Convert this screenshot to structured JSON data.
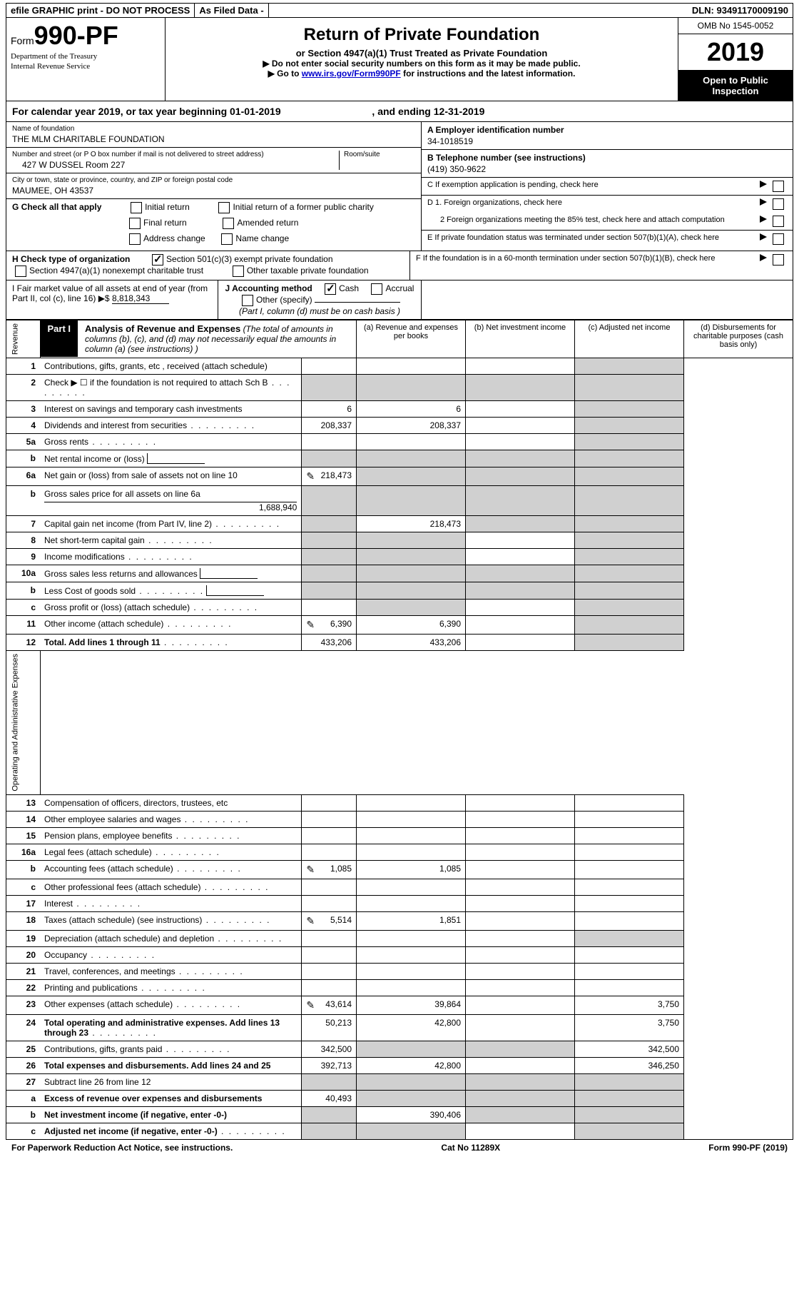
{
  "topbar": {
    "efile": "efile GRAPHIC print - DO NOT PROCESS",
    "asfiled": "As Filed Data -",
    "dln": "DLN: 93491170009190"
  },
  "header": {
    "form_prefix": "Form",
    "form_number": "990-PF",
    "dept1": "Department of the Treasury",
    "dept2": "Internal Revenue Service",
    "title": "Return of Private Foundation",
    "subtitle": "or Section 4947(a)(1) Trust Treated as Private Foundation",
    "note1": "▶ Do not enter social security numbers on this form as it may be made public.",
    "note2_prefix": "▶ Go to ",
    "note2_link": "www.irs.gov/Form990PF",
    "note2_suffix": " for instructions and the latest information.",
    "omb": "OMB No 1545-0052",
    "year": "2019",
    "open": "Open to Public Inspection"
  },
  "calyear": {
    "text": "For calendar year 2019, or tax year beginning 01-01-2019",
    "ending": ", and ending 12-31-2019"
  },
  "info": {
    "name_label": "Name of foundation",
    "name_value": "THE MLM CHARITABLE FOUNDATION",
    "addr_label": "Number and street (or P O  box number if mail is not delivered to street address)",
    "addr_value": "427 W DUSSEL Room 227",
    "room_label": "Room/suite",
    "city_label": "City or town, state or province, country, and ZIP or foreign postal code",
    "city_value": "MAUMEE, OH  43537",
    "ein_label": "A Employer identification number",
    "ein_value": "34-1018519",
    "tel_label": "B Telephone number (see instructions)",
    "tel_value": "(419) 350-9622",
    "c_label": "C  If exemption application is pending, check here",
    "d1": "D 1. Foreign organizations, check here",
    "d2": "2  Foreign organizations meeting the 85% test, check here and attach computation",
    "e_label": "E  If private foundation status was terminated under section 507(b)(1)(A), check here",
    "f_label": "F  If the foundation is in a 60-month termination under section 507(b)(1)(B), check here"
  },
  "sectionG": {
    "label": "G Check all that apply",
    "opts": [
      "Initial return",
      "Initial return of a former public charity",
      "Final return",
      "Amended return",
      "Address change",
      "Name change"
    ]
  },
  "sectionH": {
    "label": "H Check type of organization",
    "opt1": "Section 501(c)(3) exempt private foundation",
    "opt2": "Section 4947(a)(1) nonexempt charitable trust",
    "opt3": "Other taxable private foundation"
  },
  "sectionI": {
    "label": "I Fair market value of all assets at end of year (from Part II, col  (c), line 16) ▶$",
    "value": "8,818,343",
    "j_label": "J Accounting method",
    "j_cash": "Cash",
    "j_accrual": "Accrual",
    "j_other": "Other (specify)",
    "j_note": "(Part I, column (d) must be on cash basis )"
  },
  "part1": {
    "label": "Part I",
    "title": "Analysis of Revenue and Expenses",
    "title_note": "(The total of amounts in columns (b), (c), and (d) may not necessarily equal the amounts in column (a) (see instructions) )",
    "col_a": "(a)  Revenue and expenses per books",
    "col_b": "(b)  Net investment income",
    "col_c": "(c)  Adjusted net income",
    "col_d": "(d)  Disbursements for charitable purposes (cash basis only)"
  },
  "vert": {
    "revenue": "Revenue",
    "expenses": "Operating and Administrative Expenses"
  },
  "rows": [
    {
      "no": "1",
      "desc": "Contributions, gifts, grants, etc , received (attach schedule)",
      "a": "",
      "b": "",
      "c": "",
      "d": "",
      "shaded_d": true
    },
    {
      "no": "2",
      "desc": "Check ▶ ☐ if the foundation is not required to attach Sch  B",
      "a": "",
      "b": "",
      "c": "",
      "d": "",
      "dots": true,
      "shaded_abcd": true
    },
    {
      "no": "3",
      "desc": "Interest on savings and temporary cash investments",
      "a": "6",
      "b": "6",
      "c": "",
      "d": "",
      "shaded_d": true
    },
    {
      "no": "4",
      "desc": "Dividends and interest from securities",
      "a": "208,337",
      "b": "208,337",
      "c": "",
      "d": "",
      "dots": true,
      "shaded_d": true
    },
    {
      "no": "5a",
      "desc": "Gross rents",
      "a": "",
      "b": "",
      "c": "",
      "d": "",
      "dots": true,
      "shaded_d": true
    },
    {
      "no": "b",
      "desc": "Net rental income or (loss)",
      "a": "",
      "b": "",
      "c": "",
      "d": "",
      "inline_box": true,
      "shaded_abcd": true
    },
    {
      "no": "6a",
      "desc": "Net gain or (loss) from sale of assets not on line 10",
      "a": "218,473",
      "b": "",
      "c": "",
      "d": "",
      "icon": true,
      "shaded_bcd": true
    },
    {
      "no": "b",
      "desc": "Gross sales price for all assets on line 6a",
      "a": "",
      "b": "",
      "c": "",
      "d": "",
      "inline_val": "1,688,940",
      "shaded_abcd": true
    },
    {
      "no": "7",
      "desc": "Capital gain net income (from Part IV, line 2)",
      "a": "",
      "b": "218,473",
      "c": "",
      "d": "",
      "dots": true,
      "shaded_acd": true
    },
    {
      "no": "8",
      "desc": "Net short-term capital gain",
      "a": "",
      "b": "",
      "c": "",
      "d": "",
      "dots": true,
      "shaded_abd": true
    },
    {
      "no": "9",
      "desc": "Income modifications",
      "a": "",
      "b": "",
      "c": "",
      "d": "",
      "dots": true,
      "shaded_abd": true
    },
    {
      "no": "10a",
      "desc": "Gross sales less returns and allowances",
      "a": "",
      "b": "",
      "c": "",
      "d": "",
      "inline_box": true,
      "shaded_abcd": true
    },
    {
      "no": "b",
      "desc": "Less  Cost of goods sold",
      "a": "",
      "b": "",
      "c": "",
      "d": "",
      "dots": true,
      "inline_box": true,
      "shaded_abcd": true
    },
    {
      "no": "c",
      "desc": "Gross profit or (loss) (attach schedule)",
      "a": "",
      "b": "",
      "c": "",
      "d": "",
      "dots": true,
      "shaded_bd": true
    },
    {
      "no": "11",
      "desc": "Other income (attach schedule)",
      "a": "6,390",
      "b": "6,390",
      "c": "",
      "d": "",
      "dots": true,
      "icon": true,
      "shaded_d": true
    },
    {
      "no": "12",
      "desc": "Total. Add lines 1 through 11",
      "a": "433,206",
      "b": "433,206",
      "c": "",
      "d": "",
      "dots": true,
      "bold": true,
      "shaded_d": true
    }
  ],
  "exp_rows": [
    {
      "no": "13",
      "desc": "Compensation of officers, directors, trustees, etc",
      "a": "",
      "b": "",
      "c": "",
      "d": ""
    },
    {
      "no": "14",
      "desc": "Other employee salaries and wages",
      "a": "",
      "b": "",
      "c": "",
      "d": "",
      "dots": true
    },
    {
      "no": "15",
      "desc": "Pension plans, employee benefits",
      "a": "",
      "b": "",
      "c": "",
      "d": "",
      "dots": true
    },
    {
      "no": "16a",
      "desc": "Legal fees (attach schedule)",
      "a": "",
      "b": "",
      "c": "",
      "d": "",
      "dots": true
    },
    {
      "no": "b",
      "desc": "Accounting fees (attach schedule)",
      "a": "1,085",
      "b": "1,085",
      "c": "",
      "d": "",
      "dots": true,
      "icon": true
    },
    {
      "no": "c",
      "desc": "Other professional fees (attach schedule)",
      "a": "",
      "b": "",
      "c": "",
      "d": "",
      "dots": true
    },
    {
      "no": "17",
      "desc": "Interest",
      "a": "",
      "b": "",
      "c": "",
      "d": "",
      "dots": true
    },
    {
      "no": "18",
      "desc": "Taxes (attach schedule) (see instructions)",
      "a": "5,514",
      "b": "1,851",
      "c": "",
      "d": "",
      "dots": true,
      "icon": true
    },
    {
      "no": "19",
      "desc": "Depreciation (attach schedule) and depletion",
      "a": "",
      "b": "",
      "c": "",
      "d": "",
      "dots": true,
      "shaded_d": true
    },
    {
      "no": "20",
      "desc": "Occupancy",
      "a": "",
      "b": "",
      "c": "",
      "d": "",
      "dots": true
    },
    {
      "no": "21",
      "desc": "Travel, conferences, and meetings",
      "a": "",
      "b": "",
      "c": "",
      "d": "",
      "dots": true
    },
    {
      "no": "22",
      "desc": "Printing and publications",
      "a": "",
      "b": "",
      "c": "",
      "d": "",
      "dots": true
    },
    {
      "no": "23",
      "desc": "Other expenses (attach schedule)",
      "a": "43,614",
      "b": "39,864",
      "c": "",
      "d": "3,750",
      "dots": true,
      "icon": true
    },
    {
      "no": "24",
      "desc": "Total operating and administrative expenses. Add lines 13 through 23",
      "a": "50,213",
      "b": "42,800",
      "c": "",
      "d": "3,750",
      "dots": true,
      "bold": true
    },
    {
      "no": "25",
      "desc": "Contributions, gifts, grants paid",
      "a": "342,500",
      "b": "",
      "c": "",
      "d": "342,500",
      "dots": true,
      "shaded_bc": true
    },
    {
      "no": "26",
      "desc": "Total expenses and disbursements. Add lines 24 and 25",
      "a": "392,713",
      "b": "42,800",
      "c": "",
      "d": "346,250",
      "bold": true
    },
    {
      "no": "27",
      "desc": "Subtract line 26 from line 12",
      "a": "",
      "b": "",
      "c": "",
      "d": "",
      "shaded_abcd": true
    },
    {
      "no": "a",
      "desc": "Excess of revenue over expenses and disbursements",
      "a": "40,493",
      "b": "",
      "c": "",
      "d": "",
      "bold": true,
      "shaded_bcd": true
    },
    {
      "no": "b",
      "desc": "Net investment income (if negative, enter -0-)",
      "a": "",
      "b": "390,406",
      "c": "",
      "d": "",
      "bold": true,
      "shaded_acd": true
    },
    {
      "no": "c",
      "desc": "Adjusted net income (if negative, enter -0-)",
      "a": "",
      "b": "",
      "c": "",
      "d": "",
      "dots": true,
      "bold": true,
      "shaded_abd": true
    }
  ],
  "footer": {
    "left": "For Paperwork Reduction Act Notice, see instructions.",
    "center": "Cat No  11289X",
    "right": "Form 990-PF (2019)"
  }
}
